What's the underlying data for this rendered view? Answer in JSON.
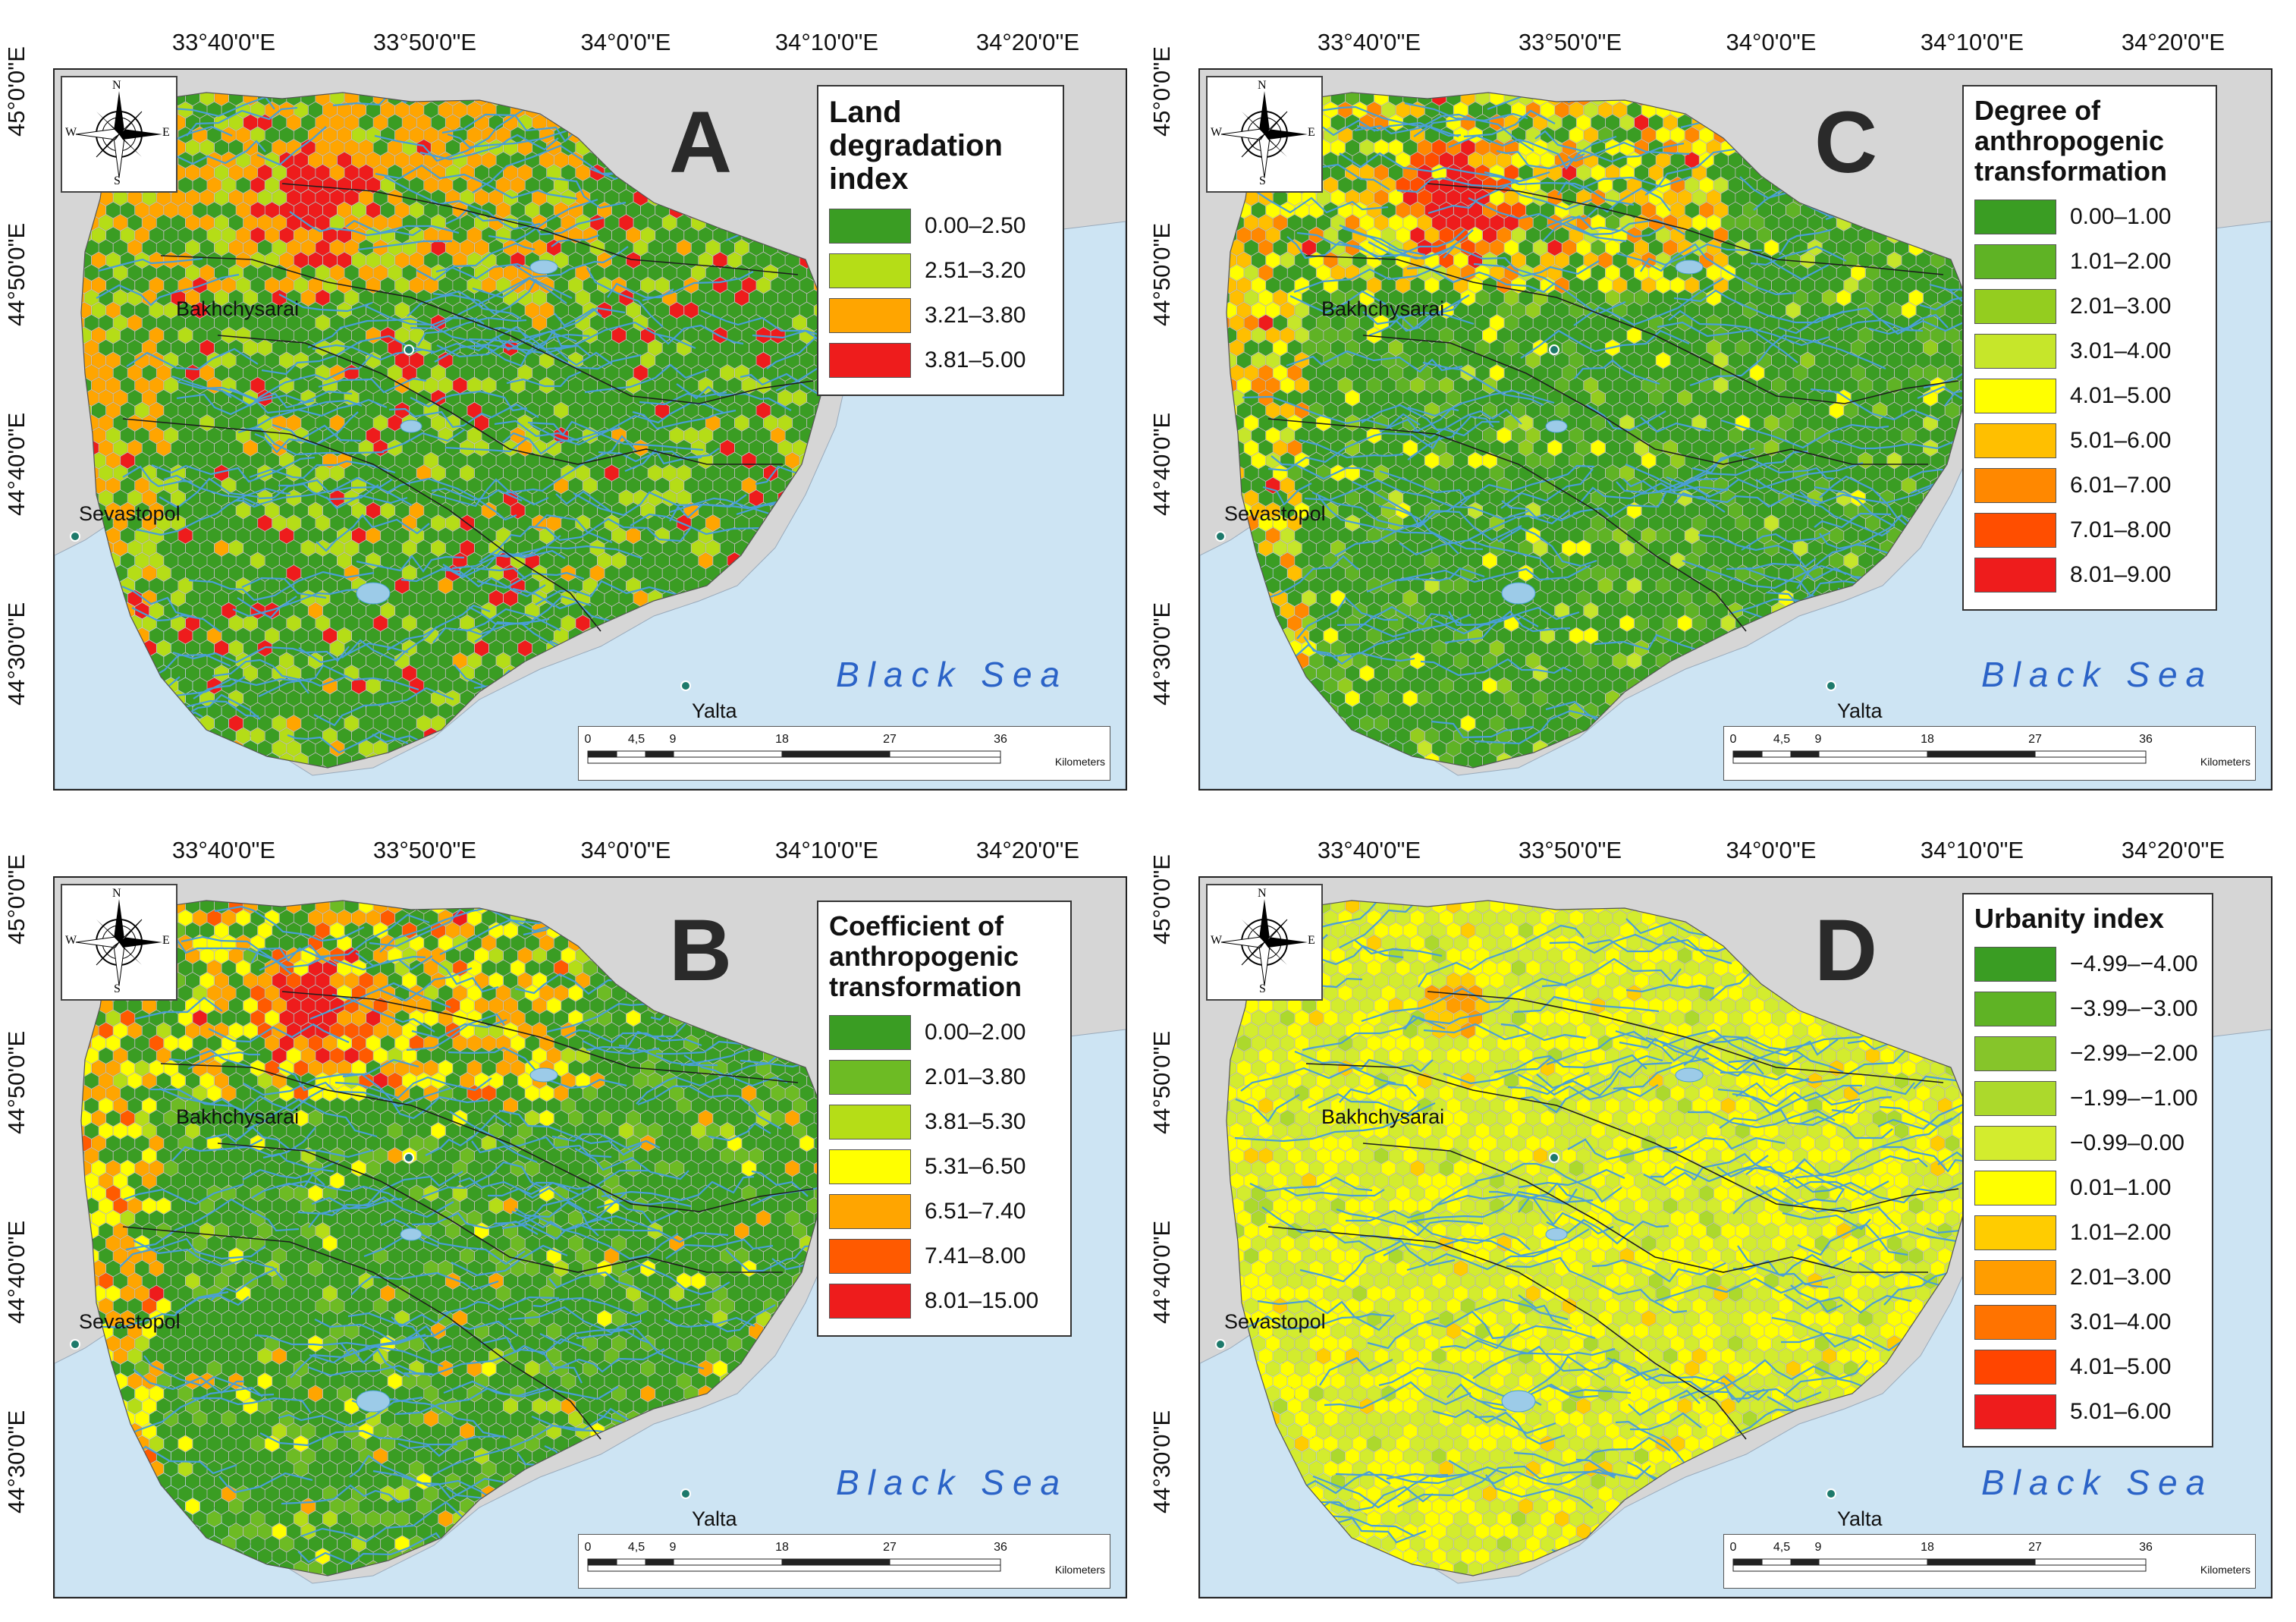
{
  "colors": {
    "sea": "#cde4f3",
    "land_outside": "#d6d6d6",
    "river": "#4a9fd6",
    "boundary": "#1e1e1e",
    "sea_label": "#2b63c7"
  },
  "axes": {
    "longitudes": [
      "33°40'0\"E",
      "33°50'0\"E",
      "34°0'0\"E",
      "34°10'0\"E",
      "34°20'0\"E"
    ],
    "latitudes": [
      "45°0'0\"E",
      "44°50'0\"E",
      "44°40'0\"E",
      "44°30'0\"E"
    ]
  },
  "places": {
    "bakhchysarai": "Bakhchysarai",
    "sevastopol": "Sevastopol",
    "yalta": "Yalta",
    "sea": "Black Sea"
  },
  "compass": {
    "north": "N",
    "south": "S",
    "east": "E",
    "west": "W"
  },
  "scale": {
    "ticks": [
      "0",
      "4,5",
      "9",
      "18",
      "27",
      "36"
    ],
    "unit": "Kilometers"
  },
  "panels": [
    {
      "letter": "A",
      "legend_title": "Land degradation index",
      "palette": "lowgreen",
      "classes": [
        {
          "label": "0.00–2.50",
          "color": "#3a9d23"
        },
        {
          "label": "2.51–3.20",
          "color": "#b5dd17"
        },
        {
          "label": "3.21–3.80",
          "color": "#ffa500"
        },
        {
          "label": "3.81–5.00",
          "color": "#ee1c1c"
        }
      ]
    },
    {
      "letter": "C",
      "legend_title": "Degree of anthropogenic transformation",
      "palette": "lowgreen",
      "classes": [
        {
          "label": "0.00–1.00",
          "color": "#3a9d23"
        },
        {
          "label": "1.01–2.00",
          "color": "#5fb325"
        },
        {
          "label": "2.01–3.00",
          "color": "#94cd1f"
        },
        {
          "label": "3.01–4.00",
          "color": "#c6e62a"
        },
        {
          "label": "4.01–5.00",
          "color": "#ffff00"
        },
        {
          "label": "5.01–6.00",
          "color": "#ffbf00"
        },
        {
          "label": "6.01–7.00",
          "color": "#ff8800"
        },
        {
          "label": "7.01–8.00",
          "color": "#ff4e00"
        },
        {
          "label": "8.01–9.00",
          "color": "#ee1c1c"
        }
      ]
    },
    {
      "letter": "B",
      "legend_title": "Coefficient of anthropogenic transformation",
      "palette": "mixed",
      "classes": [
        {
          "label": "0.00–2.00",
          "color": "#3a9d23"
        },
        {
          "label": "2.01–3.80",
          "color": "#6dbb24"
        },
        {
          "label": "3.81–5.30",
          "color": "#b5dd17"
        },
        {
          "label": "5.31–6.50",
          "color": "#ffff00"
        },
        {
          "label": "6.51–7.40",
          "color": "#ffa500"
        },
        {
          "label": "7.41–8.00",
          "color": "#ff5a00"
        },
        {
          "label": "8.01–15.00",
          "color": "#ee1c1c"
        }
      ]
    },
    {
      "letter": "D",
      "legend_title": "Urbanity index",
      "palette": "yellow",
      "classes": [
        {
          "label": "−4.99–−4.00",
          "color": "#3a9d23"
        },
        {
          "label": "−3.99–−3.00",
          "color": "#5fb325"
        },
        {
          "label": "−2.99–−2.00",
          "color": "#86c52a"
        },
        {
          "label": "−1.99–−1.00",
          "color": "#acd92c"
        },
        {
          "label": "−0.99–0.00",
          "color": "#d3ec2e"
        },
        {
          "label": "0.01–1.00",
          "color": "#ffff00"
        },
        {
          "label": "1.01–2.00",
          "color": "#ffcc00"
        },
        {
          "label": "2.01–3.00",
          "color": "#ff9d00"
        },
        {
          "label": "3.01–4.00",
          "color": "#ff7300"
        },
        {
          "label": "4.01–5.00",
          "color": "#ff4500"
        },
        {
          "label": "5.01–6.00",
          "color": "#ee1c1c"
        }
      ]
    }
  ]
}
